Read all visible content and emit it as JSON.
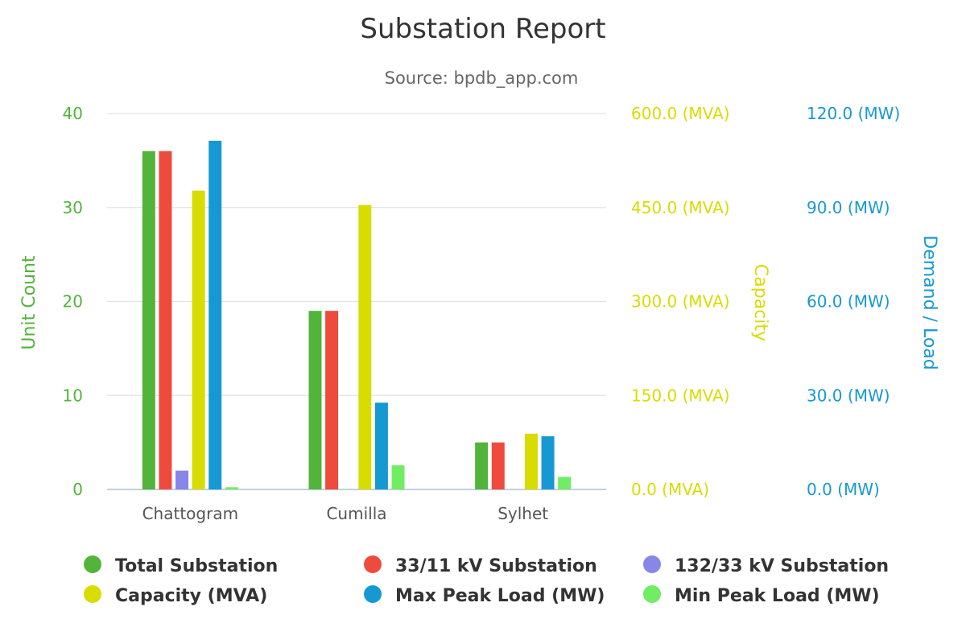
{
  "chart_data": {
    "type": "bar",
    "title": "Substation Report",
    "subtitle": "Source: bpdb_app.com",
    "categories": [
      "Chattogram",
      "Cumilla",
      "Sylhet"
    ],
    "axes": [
      {
        "id": "count",
        "title": "Unit Count",
        "position": "left",
        "color": "#52b43a",
        "range": [
          0,
          40
        ],
        "ticks": [
          "0",
          "10",
          "20",
          "30",
          "40"
        ]
      },
      {
        "id": "capacity",
        "title": "Capacity",
        "position": "right",
        "color": "#d9dc00",
        "range": [
          0,
          600
        ],
        "ticks": [
          "0.0 (MVA)",
          "150.0 (MVA)",
          "300.0 (MVA)",
          "450.0 (MVA)",
          "600.0 (MVA)"
        ]
      },
      {
        "id": "load",
        "title": "Demand / Load",
        "position": "right",
        "color": "#1699d3",
        "range": [
          0,
          120
        ],
        "ticks": [
          "0.0 (MW)",
          "30.0 (MW)",
          "60.0 (MW)",
          "90.0 (MW)",
          "120.0 (MW)"
        ]
      }
    ],
    "series": [
      {
        "name": "Total Substation",
        "axis": "count",
        "color": "#52b43a",
        "values": [
          36,
          19,
          5
        ]
      },
      {
        "name": "33/11 kV Substation",
        "axis": "count",
        "color": "#ef4b3d",
        "values": [
          36,
          19,
          5
        ]
      },
      {
        "name": "132/33 kV Substation",
        "axis": "count",
        "color": "#8687e8",
        "values": [
          2,
          0,
          0
        ]
      },
      {
        "name": "Capacity (MVA)",
        "axis": "capacity",
        "color": "#d9dc00",
        "values": [
          477,
          454,
          89
        ]
      },
      {
        "name": "Max Peak Load (MW)",
        "axis": "load",
        "color": "#1699d3",
        "values": [
          111.3,
          27.7,
          17
        ]
      },
      {
        "name": "Min Peak Load (MW)",
        "axis": "load",
        "color": "#70ed62",
        "values": [
          0.7,
          7.7,
          4
        ]
      }
    ],
    "grid": true,
    "legend_position": "bottom"
  }
}
